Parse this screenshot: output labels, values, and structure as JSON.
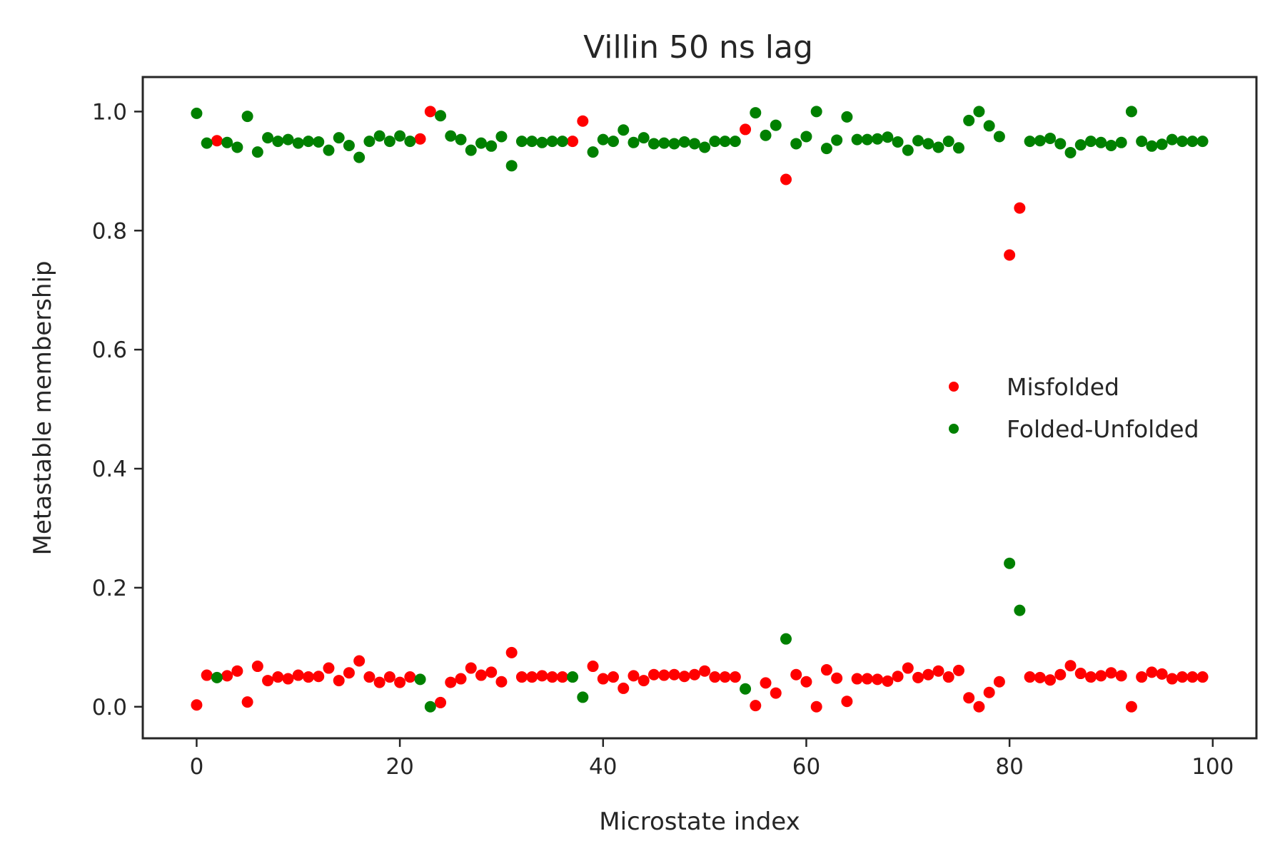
{
  "chart_data": {
    "type": "scatter",
    "title": "Villin 50 ns lag",
    "xlabel": "Microstate index",
    "ylabel": "Metastable membership",
    "xlim": [
      -5.3,
      104.3
    ],
    "ylim": [
      -0.053,
      1.058
    ],
    "xticks": [
      0,
      20,
      40,
      60,
      80,
      100
    ],
    "xtick_labels": [
      "0",
      "20",
      "40",
      "60",
      "80",
      "100"
    ],
    "yticks": [
      0.0,
      0.2,
      0.4,
      0.6,
      0.8,
      1.0
    ],
    "ytick_labels": [
      "0.0",
      "0.2",
      "0.4",
      "0.6",
      "0.8",
      "1.0"
    ],
    "grid": false,
    "legend": "center-right",
    "x": [
      0,
      1,
      2,
      3,
      4,
      5,
      6,
      7,
      8,
      9,
      10,
      11,
      12,
      13,
      14,
      15,
      16,
      17,
      18,
      19,
      20,
      21,
      22,
      23,
      24,
      25,
      26,
      27,
      28,
      29,
      30,
      31,
      32,
      33,
      34,
      35,
      36,
      37,
      38,
      39,
      40,
      41,
      42,
      43,
      44,
      45,
      46,
      47,
      48,
      49,
      50,
      51,
      52,
      53,
      54,
      55,
      56,
      57,
      58,
      59,
      60,
      61,
      62,
      63,
      64,
      65,
      66,
      67,
      68,
      69,
      70,
      71,
      72,
      73,
      74,
      75,
      76,
      77,
      78,
      79,
      80,
      81,
      82,
      83,
      84,
      85,
      86,
      87,
      88,
      89,
      90,
      91,
      92,
      93,
      94,
      95,
      96,
      97,
      98,
      99
    ],
    "series": [
      {
        "name": "Misfolded",
        "color": "#ff0000",
        "values": [
          0.003,
          0.053,
          0.951,
          0.052,
          0.06,
          0.008,
          0.068,
          0.044,
          0.05,
          0.047,
          0.053,
          0.05,
          0.051,
          0.065,
          0.044,
          0.057,
          0.077,
          0.05,
          0.041,
          0.05,
          0.041,
          0.05,
          0.954,
          1.0,
          0.007,
          0.041,
          0.047,
          0.065,
          0.053,
          0.058,
          0.042,
          0.091,
          0.05,
          0.05,
          0.052,
          0.05,
          0.05,
          0.95,
          0.984,
          0.068,
          0.047,
          0.05,
          0.031,
          0.052,
          0.044,
          0.054,
          0.053,
          0.054,
          0.051,
          0.054,
          0.06,
          0.05,
          0.05,
          0.05,
          0.97,
          0.002,
          0.04,
          0.023,
          0.886,
          0.054,
          0.042,
          0.0,
          0.062,
          0.048,
          0.009,
          0.047,
          0.047,
          0.046,
          0.043,
          0.051,
          0.065,
          0.049,
          0.054,
          0.06,
          0.05,
          0.061,
          0.015,
          0.0,
          0.024,
          0.042,
          0.759,
          0.838,
          0.05,
          0.049,
          0.045,
          0.054,
          0.069,
          0.056,
          0.05,
          0.052,
          0.057,
          0.052,
          0.0,
          0.05,
          0.058,
          0.055,
          0.047,
          0.05,
          0.05,
          0.05
        ]
      },
      {
        "name": "Folded-Unfolded",
        "color": "#008000",
        "values": [
          0.997,
          0.947,
          0.049,
          0.948,
          0.94,
          0.992,
          0.932,
          0.956,
          0.95,
          0.953,
          0.947,
          0.95,
          0.949,
          0.935,
          0.956,
          0.943,
          0.923,
          0.95,
          0.959,
          0.95,
          0.959,
          0.95,
          0.046,
          0.0,
          0.993,
          0.959,
          0.953,
          0.935,
          0.947,
          0.942,
          0.958,
          0.909,
          0.95,
          0.95,
          0.948,
          0.95,
          0.95,
          0.05,
          0.016,
          0.932,
          0.953,
          0.95,
          0.969,
          0.948,
          0.956,
          0.946,
          0.947,
          0.946,
          0.949,
          0.946,
          0.94,
          0.95,
          0.95,
          0.95,
          0.03,
          0.998,
          0.96,
          0.977,
          0.114,
          0.946,
          0.958,
          1.0,
          0.938,
          0.952,
          0.991,
          0.953,
          0.953,
          0.954,
          0.957,
          0.949,
          0.935,
          0.951,
          0.946,
          0.94,
          0.95,
          0.939,
          0.985,
          1.0,
          0.976,
          0.958,
          0.241,
          0.162,
          0.95,
          0.951,
          0.955,
          0.946,
          0.931,
          0.944,
          0.95,
          0.948,
          0.943,
          0.948,
          1.0,
          0.95,
          0.942,
          0.945,
          0.953,
          0.95,
          0.95,
          0.95
        ]
      }
    ]
  }
}
